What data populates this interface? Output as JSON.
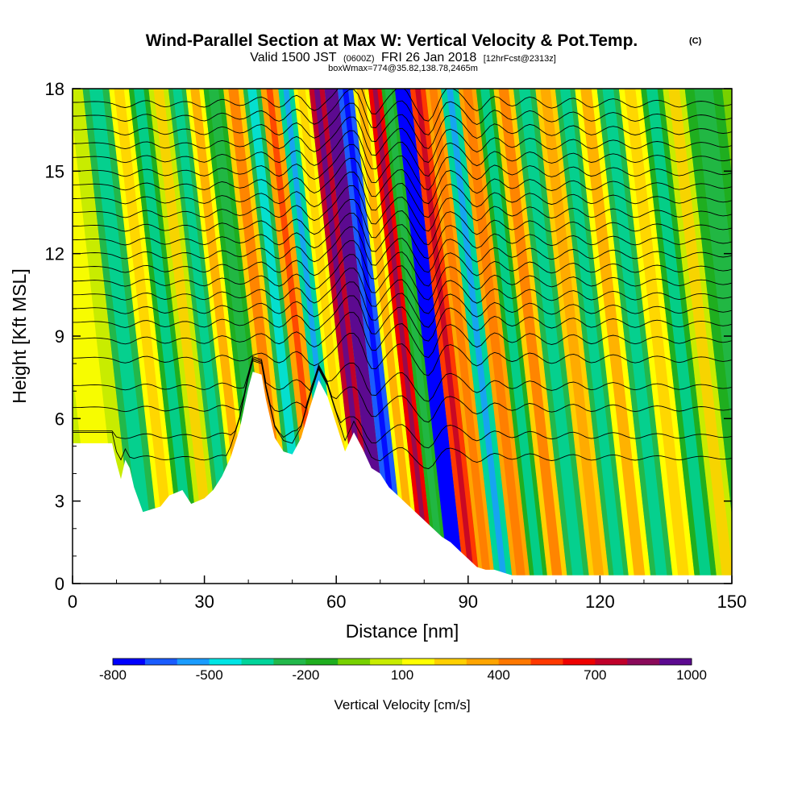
{
  "chart_data": {
    "type": "heatmap",
    "title": "Wind-Parallel Section at Max W: Vertical Velocity & Pot.Temp.",
    "title_mark": "(C)",
    "subtitle_valid": "Valid 1500 JST",
    "subtitle_utc": "(0600Z)",
    "subtitle_date": "FRI 26 Jan 2018",
    "subtitle_fcst": "[12hrFcst@2313z]",
    "subtitle_box": "boxWmax=774@35.82,138.78,2465m",
    "xlabel": "Distance [nm]",
    "ylabel": "Height [Kft MSL]",
    "xlim": [
      0,
      150
    ],
    "ylim": [
      0,
      18
    ],
    "xticks": [
      0,
      30,
      60,
      90,
      120,
      150
    ],
    "yticks": [
      0,
      3,
      6,
      9,
      12,
      15,
      18
    ],
    "colorbar": {
      "title": "Vertical Velocity [cm/s]",
      "labels": [
        "-800",
        "-500",
        "-200",
        "100",
        "400",
        "700",
        "1000"
      ],
      "label_values": [
        -800,
        -500,
        -200,
        100,
        400,
        700,
        1000
      ],
      "min": -800,
      "max": 1000,
      "colors": [
        "#0000ff",
        "#1a5cff",
        "#1a9cff",
        "#00e5e5",
        "#00d49a",
        "#22b84a",
        "#1fae1f",
        "#77d100",
        "#c8ec00",
        "#ffff00",
        "#ffd000",
        "#ffa500",
        "#ff7800",
        "#ff3800",
        "#ee0000",
        "#c0002a",
        "#8a0a5a",
        "#5c0a90"
      ]
    },
    "vertical_velocity_columns": [
      {
        "x": 5,
        "w": 40
      },
      {
        "x": 12,
        "w": -220
      },
      {
        "x": 17,
        "w": 100
      },
      {
        "x": 21,
        "w": -200
      },
      {
        "x": 26,
        "w": 60
      },
      {
        "x": 30,
        "w": -220
      },
      {
        "x": 34,
        "w": 160
      },
      {
        "x": 38,
        "w": -150
      },
      {
        "x": 43,
        "w": 250
      },
      {
        "x": 47,
        "w": -260
      },
      {
        "x": 51,
        "w": 350
      },
      {
        "x": 55,
        "w": -400
      },
      {
        "x": 58,
        "w": 120
      },
      {
        "x": 62,
        "w": 774
      },
      {
        "x": 65,
        "w": 900
      },
      {
        "x": 68,
        "w": -700
      },
      {
        "x": 72,
        "w": 150
      },
      {
        "x": 75,
        "w": 650
      },
      {
        "x": 78,
        "w": -150
      },
      {
        "x": 81,
        "w": -800
      },
      {
        "x": 85,
        "w": 550
      },
      {
        "x": 88,
        "w": 300
      },
      {
        "x": 92,
        "w": -400
      },
      {
        "x": 96,
        "w": 300
      },
      {
        "x": 100,
        "w": -200
      },
      {
        "x": 104,
        "w": 250
      },
      {
        "x": 109,
        "w": -250
      },
      {
        "x": 114,
        "w": 200
      },
      {
        "x": 118,
        "w": -230
      },
      {
        "x": 123,
        "w": 160
      },
      {
        "x": 128,
        "w": -220
      },
      {
        "x": 133,
        "w": 100
      },
      {
        "x": 138,
        "w": -200
      },
      {
        "x": 143,
        "w": 60
      },
      {
        "x": 148,
        "w": -150
      }
    ],
    "terrain_kft": [
      [
        0,
        5.1
      ],
      [
        9,
        5.1
      ],
      [
        10,
        4.4
      ],
      [
        11,
        3.8
      ],
      [
        12,
        4.5
      ],
      [
        13,
        4.2
      ],
      [
        14,
        3.5
      ],
      [
        16,
        2.6
      ],
      [
        20,
        2.8
      ],
      [
        22,
        3.2
      ],
      [
        25,
        3.4
      ],
      [
        27,
        2.9
      ],
      [
        30,
        3.1
      ],
      [
        32,
        3.4
      ],
      [
        34,
        3.9
      ],
      [
        36,
        4.6
      ],
      [
        38,
        5.6
      ],
      [
        40,
        7.1
      ],
      [
        41,
        7.7
      ],
      [
        43,
        7.6
      ],
      [
        44,
        6.7
      ],
      [
        46,
        5.3
      ],
      [
        48,
        4.8
      ],
      [
        50,
        4.7
      ],
      [
        52,
        5.3
      ],
      [
        54,
        6.4
      ],
      [
        56,
        7.4
      ],
      [
        58,
        6.8
      ],
      [
        60,
        5.8
      ],
      [
        62,
        4.8
      ],
      [
        64,
        5.5
      ],
      [
        66,
        4.9
      ],
      [
        68,
        4.2
      ],
      [
        70,
        4.0
      ],
      [
        72,
        3.5
      ],
      [
        74,
        3.2
      ],
      [
        76,
        2.9
      ],
      [
        78,
        2.6
      ],
      [
        80,
        2.3
      ],
      [
        82,
        2.0
      ],
      [
        84,
        1.7
      ],
      [
        86,
        1.5
      ],
      [
        88,
        1.2
      ],
      [
        90,
        0.9
      ],
      [
        92,
        0.6
      ],
      [
        94,
        0.5
      ],
      [
        96,
        0.5
      ],
      [
        98,
        0.4
      ],
      [
        100,
        0.3
      ],
      [
        106,
        0.3
      ],
      [
        120,
        0.3
      ],
      [
        150,
        0.3
      ]
    ],
    "isentropes_kft": [
      4.6,
      5.4,
      6.4,
      7.2,
      8.2,
      8.9,
      9.5,
      10.0,
      10.5,
      11.0,
      11.5,
      12.0,
      12.5,
      13.0,
      13.5,
      14.0,
      14.5,
      15.0,
      15.5,
      16.0,
      16.5,
      17.0,
      17.5
    ]
  }
}
